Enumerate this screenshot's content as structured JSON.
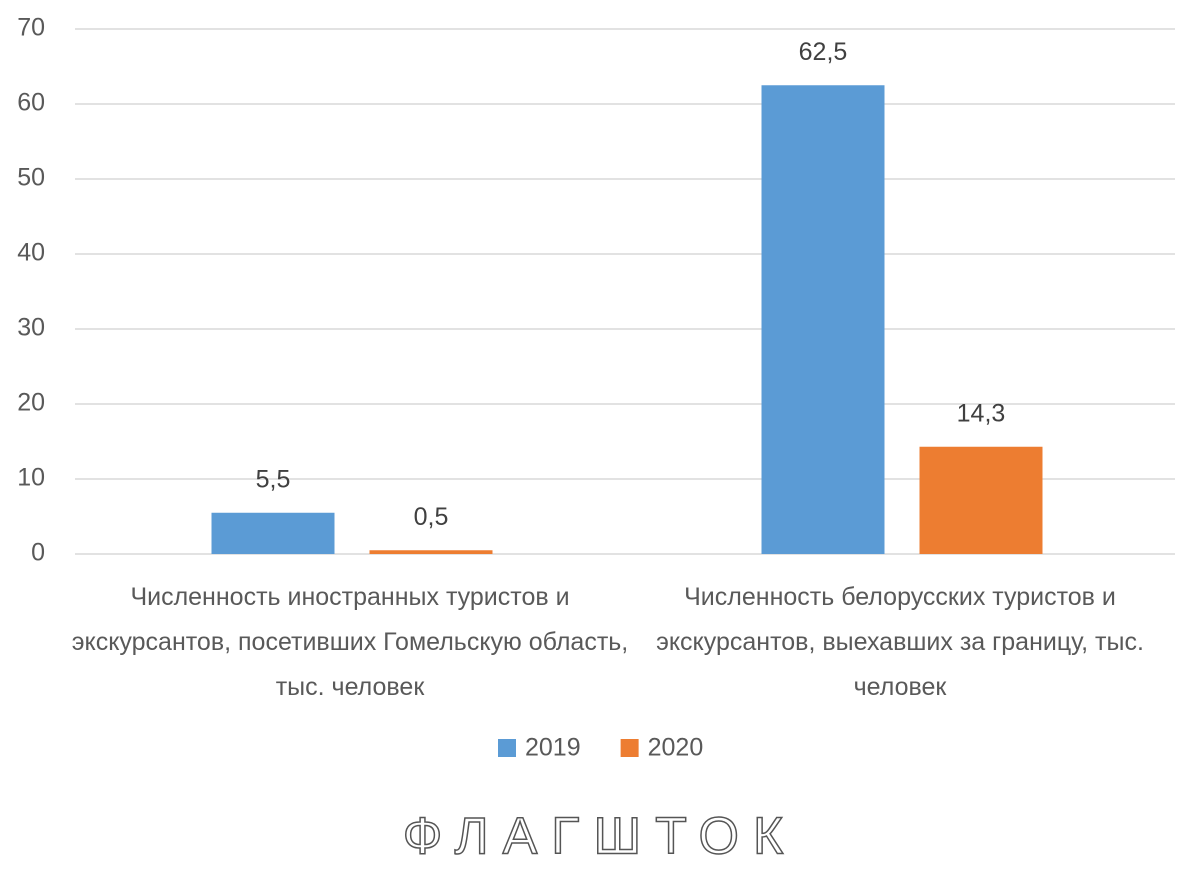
{
  "chart_data": {
    "type": "bar",
    "categories": [
      "Численность иностранных туристов и экскурсантов, посетивших Гомельскую область, тыс. человек",
      "Численность белорусских туристов и экскурсантов, выехавших за границу, тыс. человек"
    ],
    "series": [
      {
        "name": "2019",
        "color": "#5b9bd5",
        "values": [
          5.5,
          62.5
        ],
        "value_labels": [
          "5,5",
          "62,5"
        ]
      },
      {
        "name": "2020",
        "color": "#ed7d31",
        "values": [
          0.5,
          14.3
        ],
        "value_labels": [
          "0,5",
          "14,3"
        ]
      }
    ],
    "ylim": [
      0,
      70
    ],
    "yticks": [
      0,
      10,
      20,
      30,
      40,
      50,
      60,
      70
    ],
    "grid": true,
    "legend": "bottom",
    "watermark": "ФЛАГШТОК"
  }
}
